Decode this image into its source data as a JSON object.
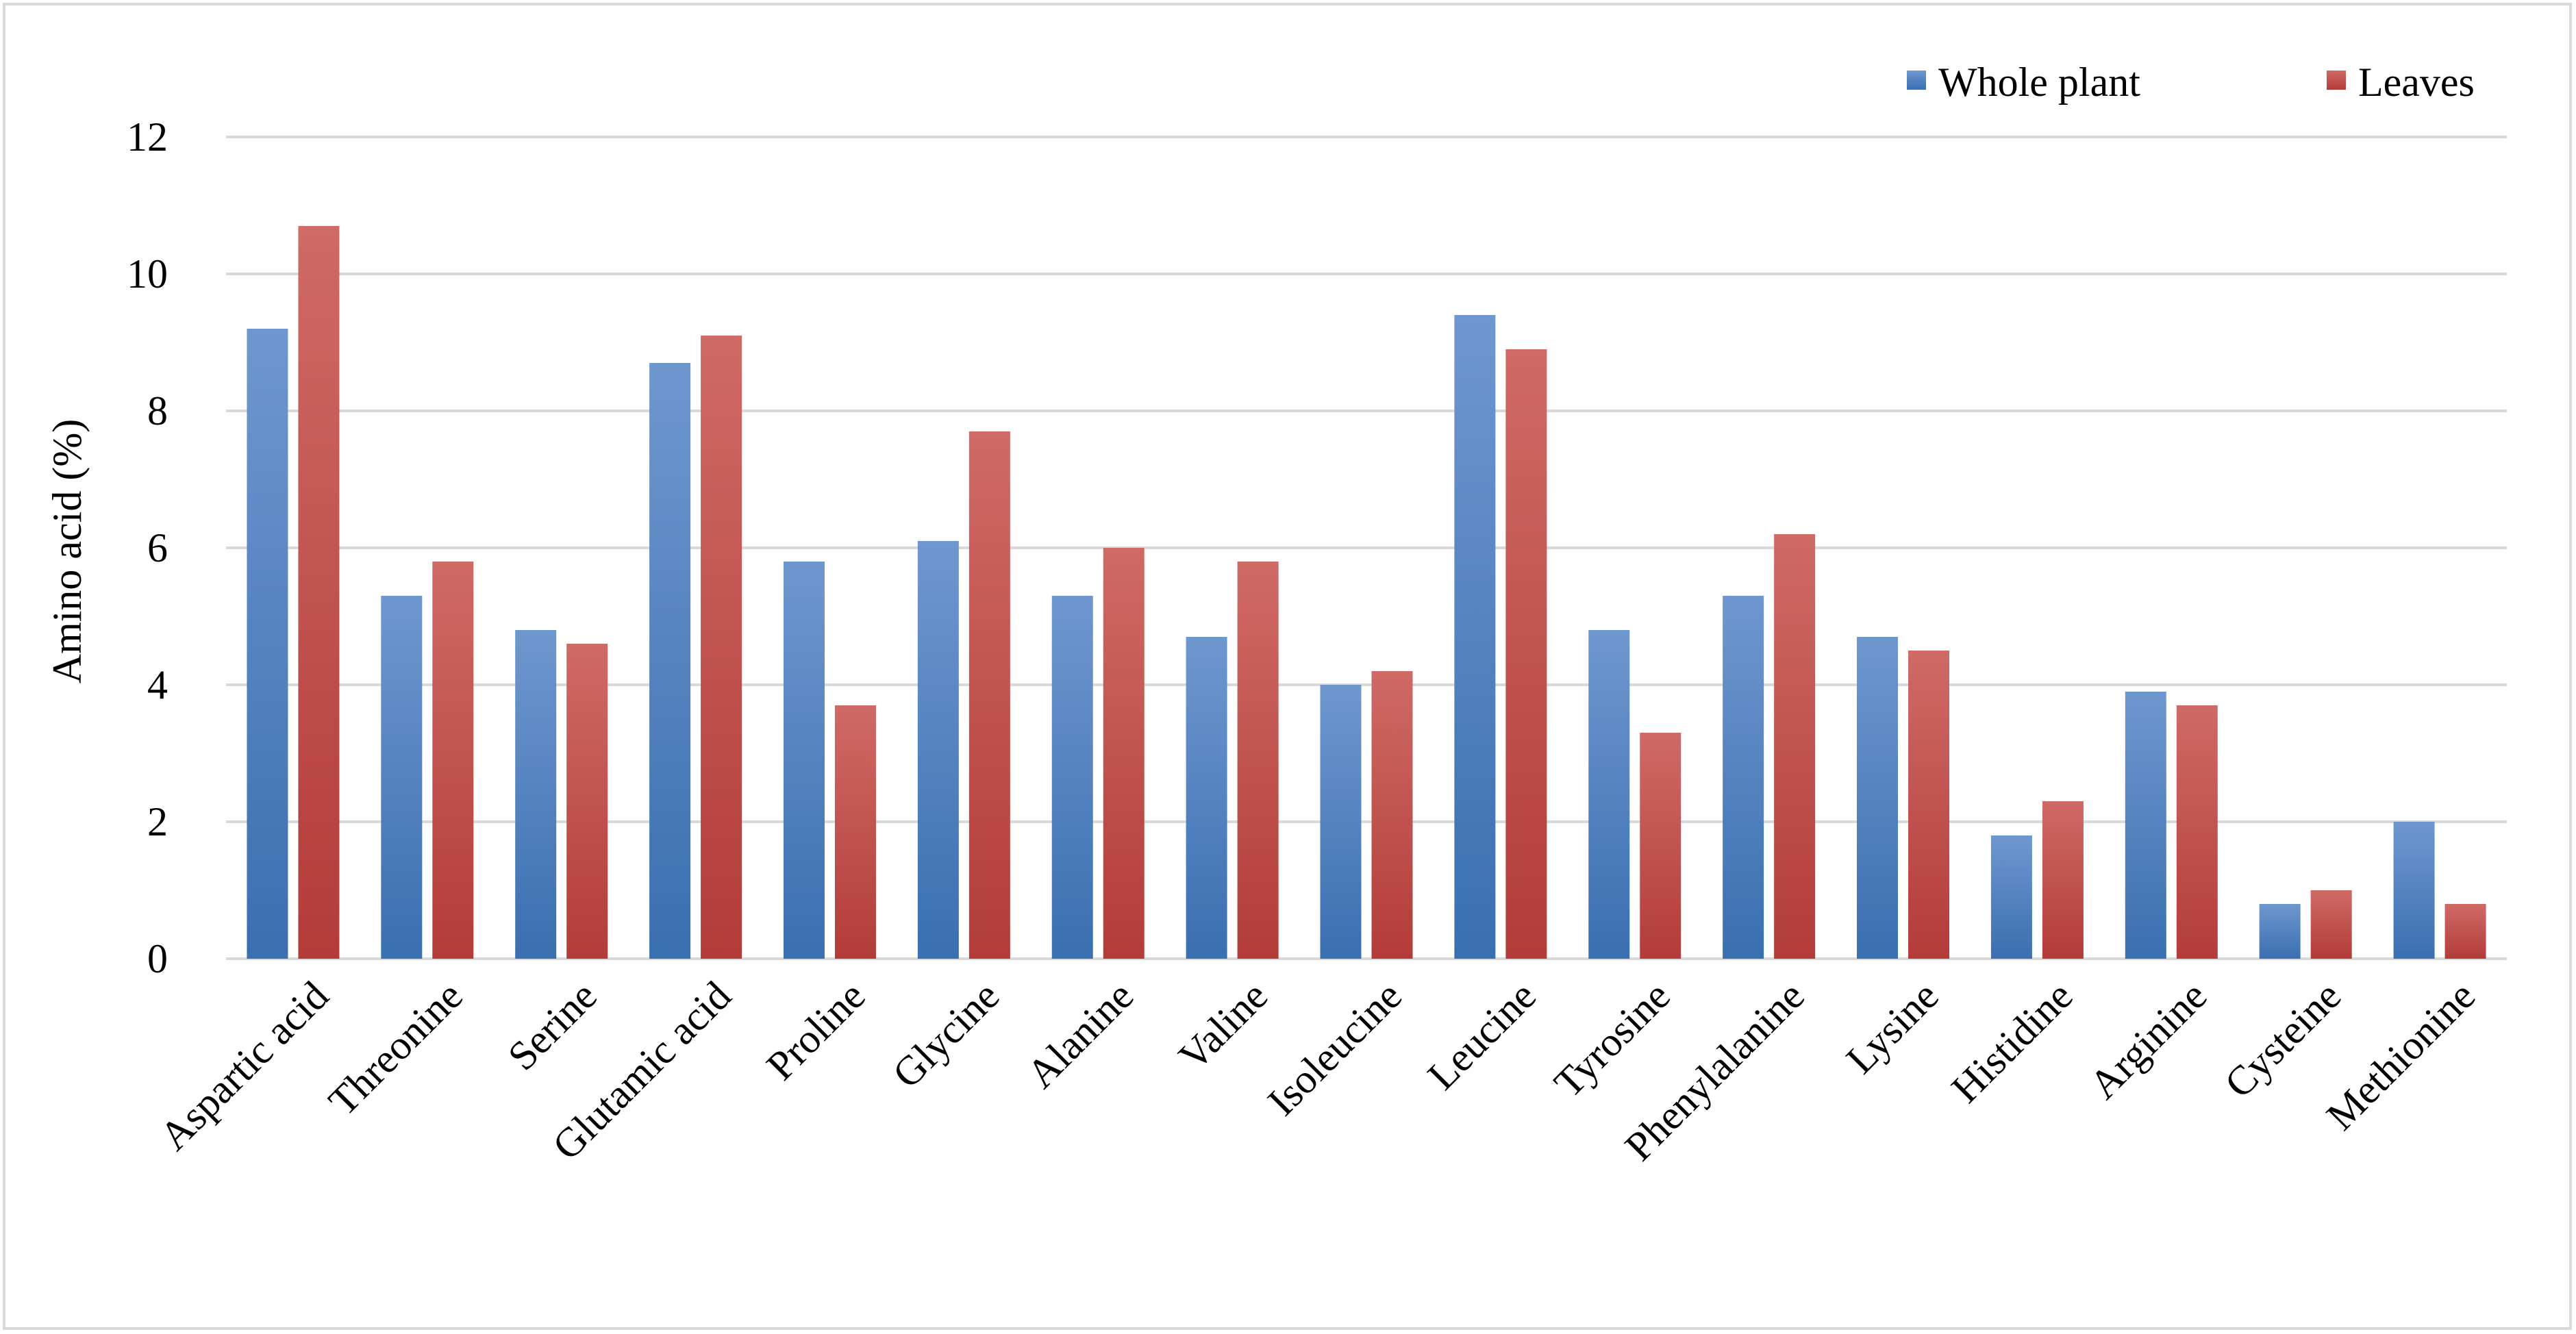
{
  "chart_data": {
    "type": "bar",
    "title": "",
    "xlabel": "",
    "ylabel": "Amino acid (%)",
    "ylim": [
      0,
      12
    ],
    "yticks": [
      0,
      2,
      4,
      6,
      8,
      10,
      12
    ],
    "grid": true,
    "legend_position": "top-right",
    "categories": [
      "Aspartic acid",
      "Threonine",
      "Serine",
      "Glutamic acid",
      "Proline",
      "Glycine",
      "Alanine",
      "Valine",
      "Isoleucine",
      "Leucine",
      "Tyrosine",
      "Phenylalanine",
      "Lysine",
      "Histidine",
      "Arginine",
      "Cysteine",
      "Methionine"
    ],
    "series": [
      {
        "name": "Whole plant",
        "color": "#4a7ebb",
        "values": [
          9.2,
          5.3,
          4.8,
          8.7,
          5.8,
          6.1,
          5.3,
          4.7,
          4.0,
          9.4,
          4.8,
          5.3,
          4.7,
          1.8,
          3.9,
          0.8,
          2.0
        ]
      },
      {
        "name": "Leaves",
        "color": "#be4b48",
        "values": [
          10.7,
          5.8,
          4.6,
          9.1,
          3.7,
          7.7,
          6.0,
          5.8,
          4.2,
          8.9,
          3.3,
          6.2,
          4.5,
          2.3,
          3.7,
          1.0,
          0.8
        ]
      }
    ]
  }
}
